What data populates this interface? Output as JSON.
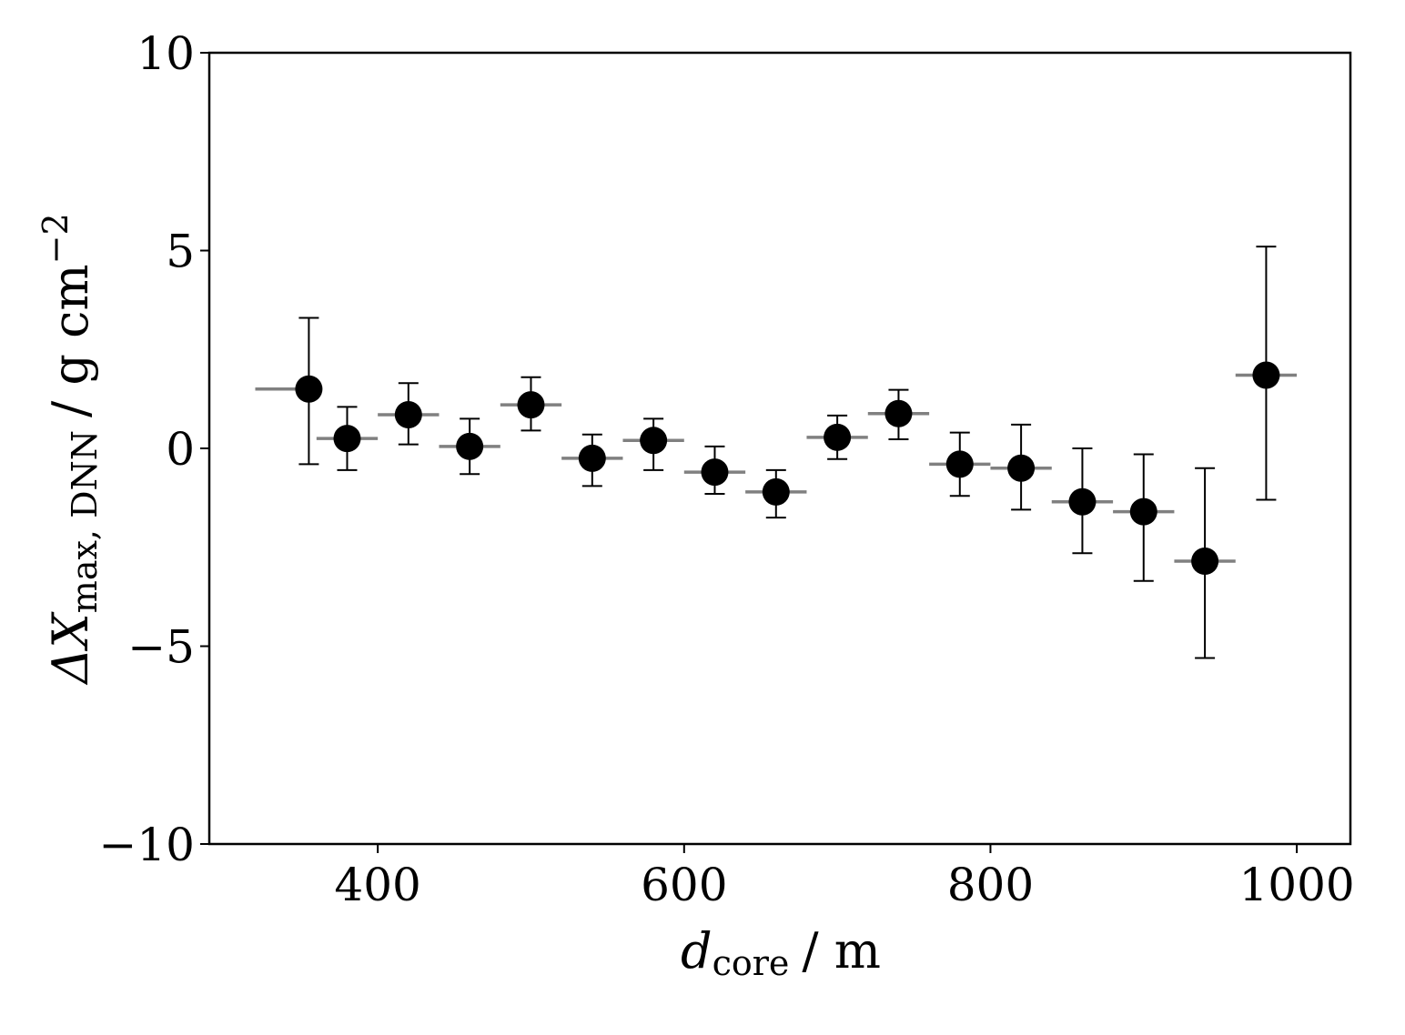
{
  "chart_data": {
    "type": "scatter",
    "xlabel": {
      "symbol": "d",
      "subscript": "core",
      "unit": "/ m"
    },
    "ylabel": {
      "symbol": "ΔX",
      "subscript": "max, DNN",
      "unit": "/ g cm",
      "superscript": "−2"
    },
    "xlim": [
      290,
      1035
    ],
    "ylim": [
      -10,
      10
    ],
    "xticks": [
      400,
      600,
      800,
      1000
    ],
    "xtick_labels": [
      "400",
      "600",
      "800",
      "1000"
    ],
    "yticks": [
      -10,
      -5,
      0,
      5,
      10
    ],
    "ytick_labels": [
      "−10",
      "−5",
      "0",
      "5",
      "10"
    ],
    "grid": false,
    "series": [
      {
        "marker_color": "#000000",
        "bin_line_color": "#808080",
        "points": [
          {
            "x": 355,
            "y": 1.5,
            "bin_lo": 320,
            "bin_hi": 360,
            "err_lo": 1.9,
            "err_hi": 1.8
          },
          {
            "x": 380,
            "y": 0.25,
            "bin_lo": 360,
            "bin_hi": 400,
            "err_lo": 0.8,
            "err_hi": 0.8
          },
          {
            "x": 420,
            "y": 0.85,
            "bin_lo": 400,
            "bin_hi": 440,
            "err_lo": 0.75,
            "err_hi": 0.8
          },
          {
            "x": 460,
            "y": 0.05,
            "bin_lo": 440,
            "bin_hi": 480,
            "err_lo": 0.7,
            "err_hi": 0.7
          },
          {
            "x": 500,
            "y": 1.1,
            "bin_lo": 480,
            "bin_hi": 520,
            "err_lo": 0.65,
            "err_hi": 0.7
          },
          {
            "x": 540,
            "y": -0.25,
            "bin_lo": 520,
            "bin_hi": 560,
            "err_lo": 0.7,
            "err_hi": 0.6
          },
          {
            "x": 580,
            "y": 0.2,
            "bin_lo": 560,
            "bin_hi": 600,
            "err_lo": 0.75,
            "err_hi": 0.55
          },
          {
            "x": 620,
            "y": -0.6,
            "bin_lo": 600,
            "bin_hi": 640,
            "err_lo": 0.55,
            "err_hi": 0.65
          },
          {
            "x": 660,
            "y": -1.1,
            "bin_lo": 640,
            "bin_hi": 680,
            "err_lo": 0.65,
            "err_hi": 0.55
          },
          {
            "x": 700,
            "y": 0.28,
            "bin_lo": 680,
            "bin_hi": 720,
            "err_lo": 0.55,
            "err_hi": 0.55
          },
          {
            "x": 740,
            "y": 0.88,
            "bin_lo": 720,
            "bin_hi": 760,
            "err_lo": 0.65,
            "err_hi": 0.6
          },
          {
            "x": 780,
            "y": -0.4,
            "bin_lo": 760,
            "bin_hi": 800,
            "err_lo": 0.8,
            "err_hi": 0.8
          },
          {
            "x": 820,
            "y": -0.5,
            "bin_lo": 800,
            "bin_hi": 840,
            "err_lo": 1.05,
            "err_hi": 1.1
          },
          {
            "x": 860,
            "y": -1.35,
            "bin_lo": 840,
            "bin_hi": 880,
            "err_lo": 1.3,
            "err_hi": 1.35
          },
          {
            "x": 900,
            "y": -1.6,
            "bin_lo": 880,
            "bin_hi": 920,
            "err_lo": 1.75,
            "err_hi": 1.45
          },
          {
            "x": 940,
            "y": -2.85,
            "bin_lo": 920,
            "bin_hi": 960,
            "err_lo": 2.45,
            "err_hi": 2.35
          },
          {
            "x": 980,
            "y": 1.85,
            "bin_lo": 960,
            "bin_hi": 1000,
            "err_lo": 3.15,
            "err_hi": 3.25
          }
        ]
      }
    ]
  }
}
